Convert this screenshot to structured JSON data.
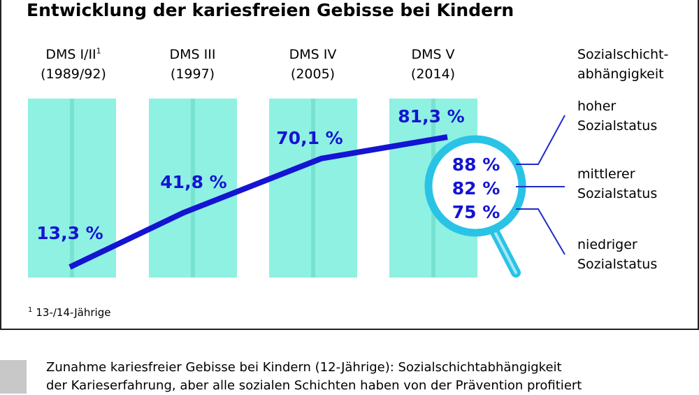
{
  "header": {
    "title": "Entwicklung der kariesfreien Gebisse bei Kindern"
  },
  "chart_data": {
    "type": "line",
    "title": "Entwicklung der kariesfreien Gebisse bei Kindern",
    "categories": [
      {
        "name": "DMS I/II",
        "sup": "1",
        "year": "(1989/92)"
      },
      {
        "name": "DMS III",
        "sup": "",
        "year": "(1997)"
      },
      {
        "name": "DMS IV",
        "sup": "",
        "year": "(2005)"
      },
      {
        "name": "DMS V",
        "sup": "",
        "year": "(2014)"
      }
    ],
    "values": [
      13.3,
      41.8,
      70.1,
      81.3
    ],
    "value_labels": [
      "13,3 %",
      "41,8 %",
      "70,1 %",
      "81,3 %"
    ],
    "ylim": [
      0,
      100
    ],
    "line_color": "#1414d2",
    "column_color": "#8ef1e2",
    "label_color": "#1414d2",
    "magnifier": {
      "values": [
        88,
        82,
        75
      ],
      "labels": [
        "88 %",
        "82 %",
        "75 %"
      ],
      "color": "#29c3e6"
    },
    "side": {
      "heading": [
        "Sozialschicht-",
        "abhängigkeit"
      ],
      "groups": [
        [
          "hoher",
          "Sozialstatus"
        ],
        [
          "mittlerer",
          "Sozialstatus"
        ],
        [
          "niedriger",
          "Sozialstatus"
        ]
      ]
    }
  },
  "footnote": {
    "marker": "1",
    "text": "13-/14-Jährige"
  },
  "caption": {
    "lines": [
      "Zunahme kariesfreier Gebisse bei Kindern (12-Jährige): Sozialschichtabhängigkeit",
      "der Karieserfahrung, aber alle sozialen Schichten haben von der Prävention profitiert"
    ]
  }
}
